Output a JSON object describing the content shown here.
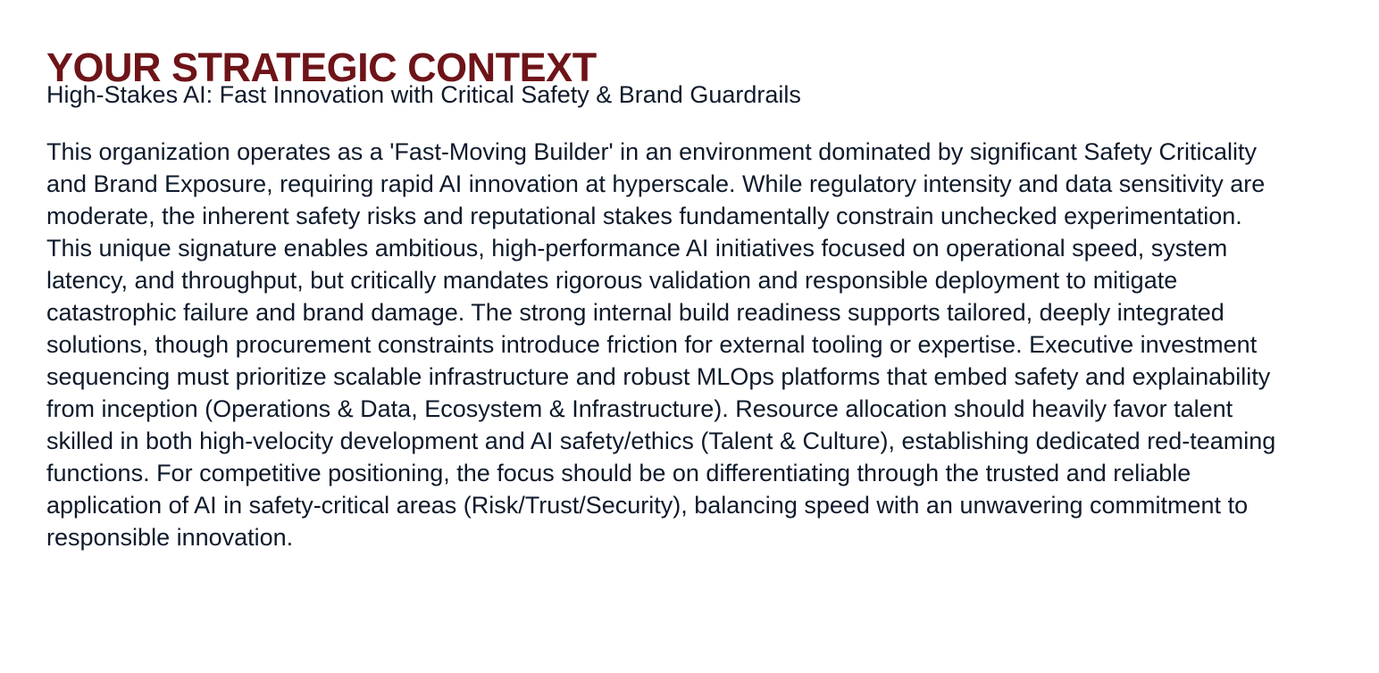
{
  "context": {
    "title": "YOUR STRATEGIC CONTEXT",
    "subtitle": "High-Stakes AI: Fast Innovation with Critical Safety & Brand Guardrails",
    "body": "This organization operates as a 'Fast-Moving Builder' in an environment dominated by significant Safety Criticality and Brand Exposure, requiring rapid AI innovation at hyperscale. While regulatory intensity and data sensitivity are moderate, the inherent safety risks and reputational stakes fundamentally constrain unchecked experimentation. This unique signature enables ambitious, high-performance AI initiatives focused on operational speed, system latency, and throughput, but critically mandates rigorous validation and responsible deployment to mitigate catastrophic failure and brand damage. The strong internal build readiness supports tailored, deeply integrated solutions, though procurement constraints introduce friction for external tooling or expertise. Executive investment sequencing must prioritize scalable infrastructure and robust MLOps platforms that embed safety and explainability from inception (Operations & Data, Ecosystem & Infrastructure). Resource allocation should heavily favor talent skilled in both high-velocity development and AI safety/ethics (Talent & Culture), establishing dedicated red-teaming functions. For competitive positioning, the focus should be on differentiating through the trusted and reliable application of AI in safety-critical areas (Risk/Trust/Security), balancing speed with an unwavering commitment to responsible innovation."
  },
  "colors": {
    "title": "#6e1418",
    "text": "#0e1a2b",
    "background": "#ffffff"
  }
}
